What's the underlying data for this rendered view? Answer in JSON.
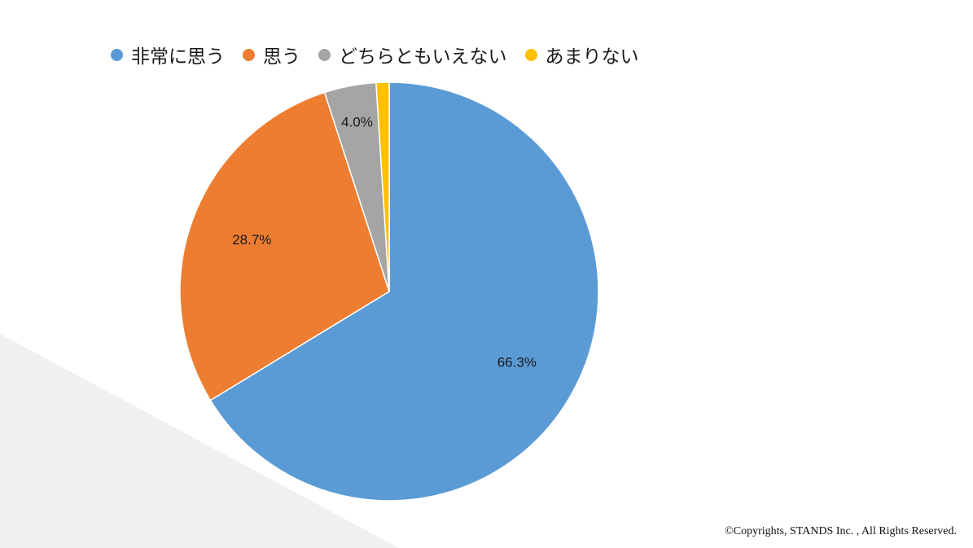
{
  "chart_data": {
    "type": "pie",
    "categories": [
      "非常に思う",
      "思う",
      "どちらともいえない",
      "あまりない"
    ],
    "values": [
      66.3,
      28.7,
      4.0,
      1.0
    ],
    "data_labels": [
      "66.3%",
      "28.7%",
      "4.0%",
      ""
    ],
    "colors": [
      "#5B9BD5",
      "#ED7D31",
      "#A5A5A5",
      "#FFC000"
    ],
    "start_angle_deg": 0,
    "direction": "clockwise",
    "legend": "top",
    "title": ""
  },
  "theme": {
    "background": "#FFFFFF",
    "decoration": "#F0F0F0",
    "label_color": "#1A1A1A"
  },
  "footer": {
    "copyright": "©Copyrights, STANDS Inc. , All Rights Reserved."
  }
}
